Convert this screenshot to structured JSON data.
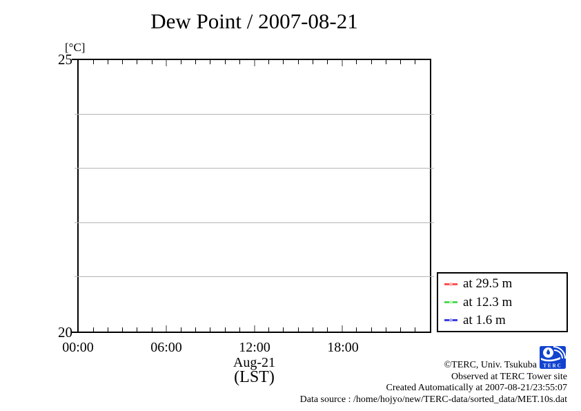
{
  "title": "Dew Point / 2007-08-21",
  "chart_data": {
    "type": "line",
    "title": "Dew Point / 2007-08-21",
    "ylabel": "[°C]",
    "ylim": [
      20,
      25
    ],
    "y_tick_labels": [
      "20",
      "25"
    ],
    "y_gridlines": [
      21,
      22,
      23,
      24
    ],
    "xlim": [
      "00:00",
      "24:00"
    ],
    "x_tick_labels": [
      "00:00",
      "06:00",
      "12:00",
      "18:00"
    ],
    "x_minor_tick_interval_hours": 1,
    "x_major_tick_interval_hours": 6,
    "xlabel_date": "Aug-21",
    "xlabel_timezone": "(LST)",
    "grid": "horizontal-only",
    "legend_position": "outside-bottom-right",
    "series": [
      {
        "name": "at 29.5 m",
        "color": "#ff5050",
        "values": []
      },
      {
        "name": "at 12.3 m",
        "color": "#55d655",
        "values": []
      },
      {
        "name": "at 1.6 m",
        "color": "#3c3cdc",
        "values": []
      }
    ]
  },
  "axis": {
    "unit_label": "[°C]",
    "y_top_label": "25",
    "y_bottom_label": "20",
    "x_labels": [
      "00:00",
      "06:00",
      "12:00",
      "18:00"
    ],
    "x_date_label": "Aug-21",
    "x_tz_label": "(LST)"
  },
  "legend": {
    "items": [
      {
        "label": "at 29.5 m",
        "color": "#ff5050"
      },
      {
        "label": "at 12.3 m",
        "color": "#55d655"
      },
      {
        "label": "at 1.6 m",
        "color": "#3c3cdc"
      }
    ]
  },
  "footer": {
    "copyright": "©TERC, Univ. Tsukuba",
    "observed": "Observed at TERC Tower site",
    "created": "Created Automatically at 2007-08-21/23:55:07",
    "data_source": "Data source : /home/hojyo/new/TERC-data/sorted_data/MET.10s.dat",
    "logo_text": "TERC"
  },
  "colors": {
    "grid": "#b4b4b4",
    "axis": "#000000",
    "major_tick": "#9a9a9a",
    "logo_blue": "#1243cf"
  }
}
